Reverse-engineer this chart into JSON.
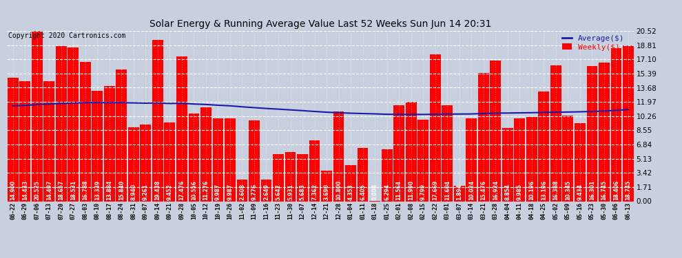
{
  "title": "Solar Energy & Running Average Value Last 52 Weeks Sun Jun 14 20:31",
  "copyright": "Copyright 2020 Cartronics.com",
  "legend_avg": "Average($)",
  "legend_weekly": "Weekly($)",
  "bar_color": "#ff0000",
  "avg_line_color": "#1a1aaa",
  "background_color": "#c8d0e0",
  "ylim": [
    0.0,
    20.52
  ],
  "yticks": [
    0.0,
    1.71,
    3.42,
    5.13,
    6.84,
    8.55,
    10.26,
    11.97,
    13.68,
    15.39,
    17.1,
    18.81,
    20.52
  ],
  "categories": [
    "06-22",
    "06-29",
    "07-06",
    "07-13",
    "07-20",
    "07-27",
    "08-03",
    "08-10",
    "08-17",
    "08-24",
    "08-31",
    "09-07",
    "09-14",
    "09-21",
    "09-28",
    "10-05",
    "10-12",
    "10-19",
    "10-26",
    "11-02",
    "11-09",
    "11-16",
    "11-23",
    "11-30",
    "12-07",
    "12-14",
    "12-21",
    "12-28",
    "01-04",
    "01-11",
    "01-18",
    "01-25",
    "02-01",
    "02-08",
    "02-15",
    "02-22",
    "03-01",
    "03-07",
    "03-14",
    "03-21",
    "03-28",
    "04-04",
    "04-11",
    "04-18",
    "04-25",
    "05-02",
    "05-09",
    "05-16",
    "05-23",
    "05-30",
    "06-06",
    "06-13"
  ],
  "weekly_values": [
    14.9,
    14.433,
    20.525,
    14.497,
    18.657,
    18.531,
    16.788,
    13.339,
    13.884,
    15.84,
    8.94,
    9.261,
    19.438,
    9.452,
    17.476,
    10.556,
    11.276,
    9.987,
    9.987,
    2.608,
    9.776,
    2.649,
    5.642,
    5.931,
    5.683,
    7.362,
    3.69,
    10.8,
    4.353,
    6.405,
    0.008,
    6.294,
    11.564,
    11.99,
    9.799,
    17.669,
    11.604,
    1.894,
    10.024,
    15.476,
    16.924,
    8.854,
    9.985,
    10.196,
    13.196,
    16.388,
    10.345,
    9.434,
    16.301,
    16.745,
    18.406,
    18.745
  ],
  "avg_values": [
    11.5,
    11.55,
    11.65,
    11.72,
    11.78,
    11.83,
    11.88,
    11.88,
    11.87,
    11.88,
    11.85,
    11.82,
    11.84,
    11.78,
    11.8,
    11.72,
    11.66,
    11.57,
    11.5,
    11.38,
    11.28,
    11.18,
    11.1,
    11.01,
    10.92,
    10.82,
    10.73,
    10.67,
    10.61,
    10.57,
    10.53,
    10.48,
    10.47,
    10.46,
    10.46,
    10.48,
    10.5,
    10.51,
    10.52,
    10.57,
    10.62,
    10.63,
    10.65,
    10.67,
    10.7,
    10.73,
    10.75,
    10.78,
    10.82,
    10.87,
    10.95,
    11.05
  ]
}
